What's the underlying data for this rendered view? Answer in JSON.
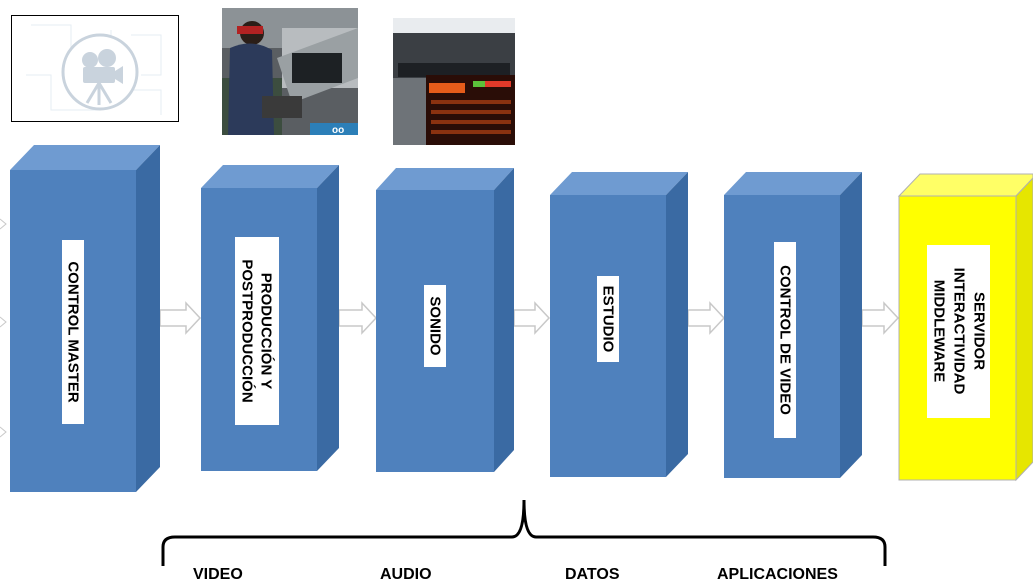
{
  "blocks": [
    {
      "lines": [
        "CONTROL MASTER"
      ],
      "color": "#4f81bd",
      "label_bg": "#ffffff"
    },
    {
      "lines": [
        "PRODUCCIÓN Y",
        "POSTPRODUCCIÓN"
      ],
      "color": "#4f81bd",
      "label_bg": "#ffffff"
    },
    {
      "lines": [
        "SONIDO"
      ],
      "color": "#4f81bd",
      "label_bg": "#ffffff"
    },
    {
      "lines": [
        "ESTUDIO"
      ],
      "color": "#4f81bd",
      "label_bg": "#ffffff"
    },
    {
      "lines": [
        "CONTROL DE VIDEO"
      ],
      "color": "#4f81bd",
      "label_bg": "#ffffff"
    },
    {
      "lines": [
        "SERVIDOR",
        "INTERACTIVIDAD",
        "MIDDLEWARE"
      ],
      "color": "#ffff00",
      "label_bg": "#ffffff"
    }
  ],
  "bottom_labels": [
    "VIDEO",
    "AUDIO",
    "DATOS",
    "APLICACIONES"
  ],
  "images": [
    {
      "icon": "film-camera-icon"
    },
    {
      "icon": "camera-operator-photo"
    },
    {
      "icon": "monitoring-screen-photo"
    }
  ],
  "colors": {
    "block_blue": "#4f81bd",
    "block_blue_dark": "#3a6aa3",
    "block_yellow": "#ffff00",
    "arrow_outline": "#c8c8c8"
  }
}
